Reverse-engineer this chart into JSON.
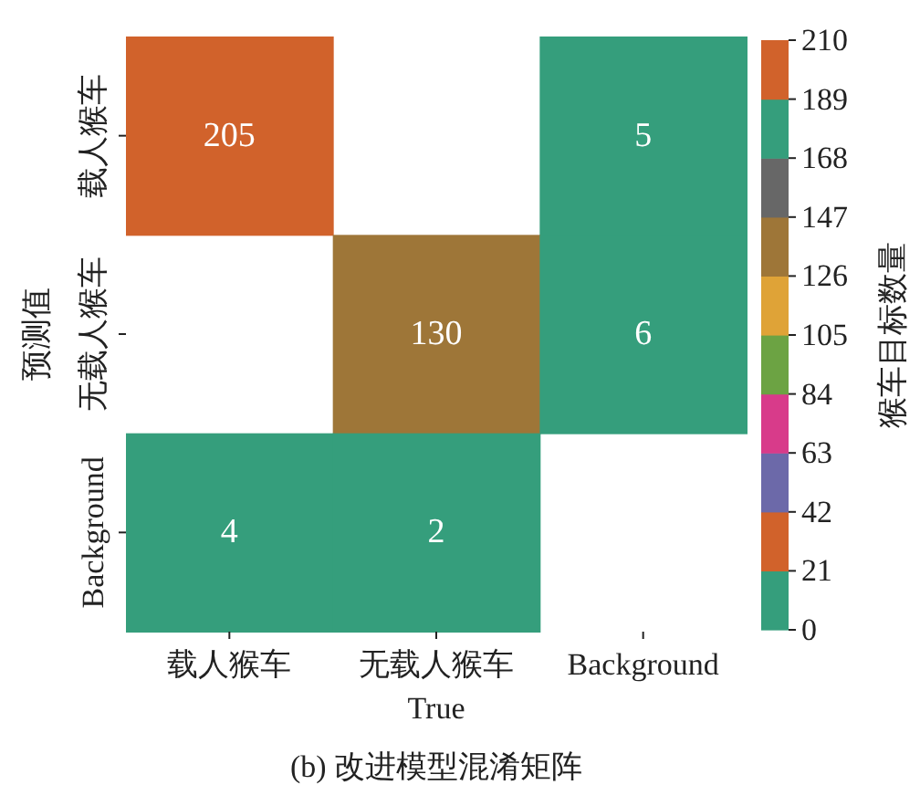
{
  "chart_data": {
    "type": "heatmap",
    "title": "(b) 改进模型混淆矩阵",
    "xlabel": "True",
    "ylabel": "预测值",
    "clabel": "猴车目标数量",
    "categories": [
      "载人猴车",
      "无载人猴车",
      "Background"
    ],
    "y_categories": [
      "载人猴车",
      "无载人猴车",
      "Background"
    ],
    "cells": [
      [
        205,
        null,
        5
      ],
      [
        null,
        130,
        6
      ],
      [
        4,
        2,
        null
      ]
    ],
    "data_labels": true,
    "clim": [
      0,
      210
    ],
    "cticks": [
      0,
      21,
      42,
      63,
      84,
      105,
      126,
      147,
      168,
      189,
      210
    ]
  }
}
